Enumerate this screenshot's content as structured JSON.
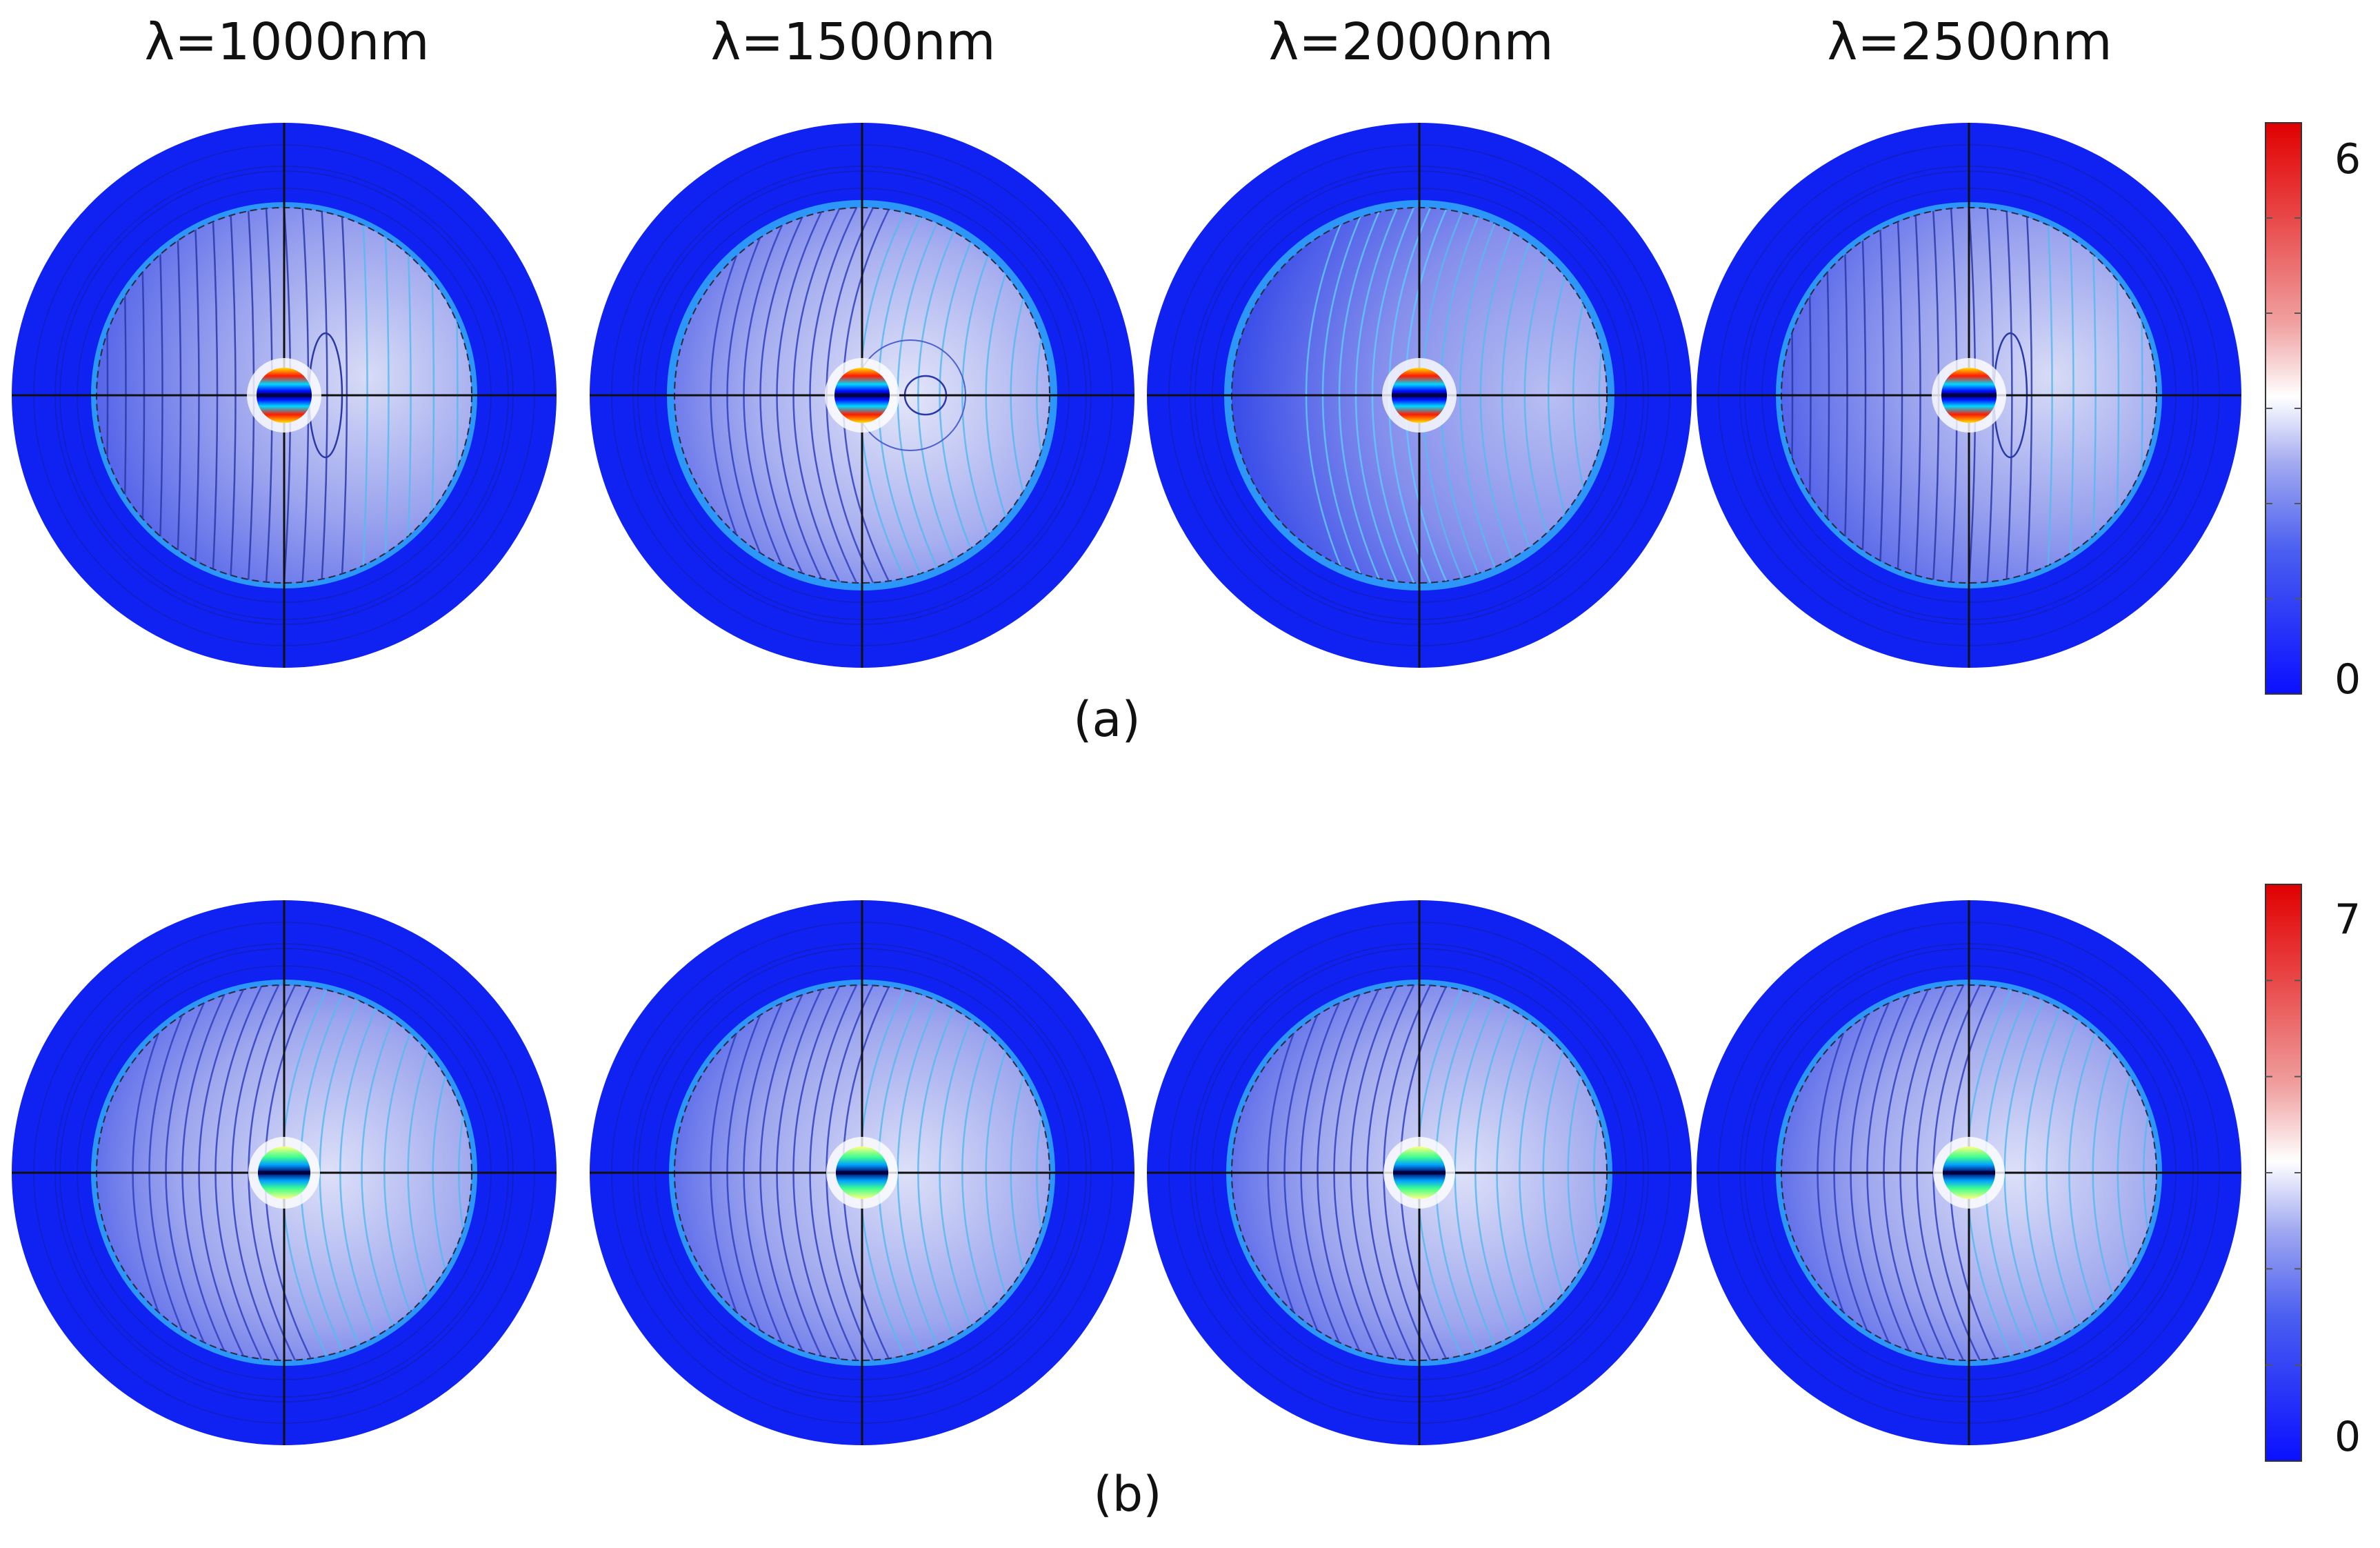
{
  "columns": [
    "λ=1000nm",
    "λ=1500nm",
    "λ=2000nm",
    "λ=2500nm"
  ],
  "panels": [
    {
      "label": "(a)",
      "colorbar": {
        "max": "6",
        "min": "0"
      }
    },
    {
      "label": "(b)",
      "colorbar": {
        "max": "7",
        "min": "0"
      }
    }
  ],
  "colors": {
    "outer_domain": "#0f22f2",
    "colormap": [
      "#0a10ff",
      "#4a5ef0",
      "#a0a8f0",
      "#ffffff",
      "#f0a0a0",
      "#e84040",
      "#e00000"
    ],
    "field_hot": "#ff1a00",
    "field_band": "#ffe000"
  }
}
